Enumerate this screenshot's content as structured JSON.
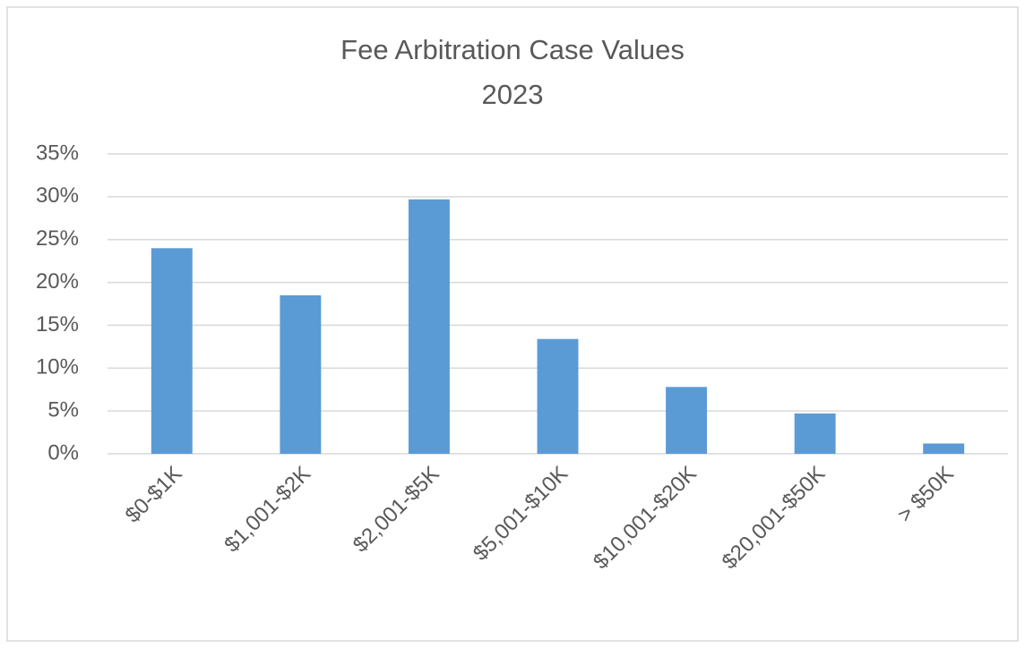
{
  "chart_data": {
    "type": "bar",
    "title": [
      "Fee Arbitration Case Values",
      "2023"
    ],
    "categories": [
      "$0-$1K",
      "$1,001-$2K",
      "$2,001-$5K",
      "$5,001-$10K",
      "$10,001-$20K",
      "$20,001-$50K",
      "> $50K"
    ],
    "values": [
      24.0,
      18.5,
      29.7,
      13.4,
      7.8,
      4.7,
      1.2
    ],
    "color": "#5b9bd5",
    "ylim": [
      0,
      35
    ],
    "yticks": [
      {
        "value": 0,
        "label": "0%"
      },
      {
        "value": 5,
        "label": "5%"
      },
      {
        "value": 10,
        "label": "10%"
      },
      {
        "value": 15,
        "label": "15%"
      },
      {
        "value": 20,
        "label": "20%"
      },
      {
        "value": 25,
        "label": "25%"
      },
      {
        "value": 30,
        "label": "30%"
      },
      {
        "value": 35,
        "label": "35%"
      }
    ],
    "grid": true
  }
}
